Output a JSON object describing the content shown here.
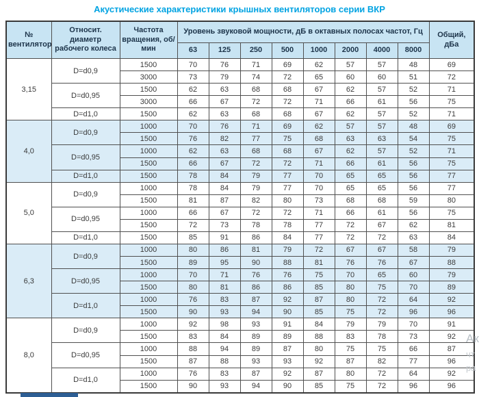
{
  "title": "Акустические характеристики крышных вентиляторов серии ВКР",
  "colors": {
    "title_accent": "#00a3e2",
    "header_bg": "#c8e4f3",
    "shaded_group_bg": "#daecf7",
    "border": "#4e4e4e"
  },
  "table": {
    "headers": {
      "fan_no": "№ вентилятора",
      "diameter": "Относит. диаметр рабочего колеса",
      "speed": "Частота вращения, об/мин",
      "spl_group": "Уровень звуковой мощности, дБ в октавных полосах частот, Гц",
      "freq_bands": [
        "63",
        "125",
        "250",
        "500",
        "1000",
        "2000",
        "4000",
        "8000"
      ],
      "total": "Общий, дБа"
    },
    "groups": [
      {
        "fan": "3,15",
        "subgroups": [
          {
            "diameter": "D=d0,9",
            "rows": [
              {
                "speed": "1500",
                "levels": [
                  70,
                  76,
                  71,
                  69,
                  62,
                  57,
                  57,
                  48
                ],
                "total": 69
              },
              {
                "speed": "3000",
                "levels": [
                  73,
                  79,
                  74,
                  72,
                  65,
                  60,
                  60,
                  51
                ],
                "total": 72
              }
            ]
          },
          {
            "diameter": "D=d0,95",
            "rows": [
              {
                "speed": "1500",
                "levels": [
                  62,
                  63,
                  68,
                  68,
                  67,
                  62,
                  57,
                  52
                ],
                "total": 71
              },
              {
                "speed": "3000",
                "levels": [
                  66,
                  67,
                  72,
                  72,
                  71,
                  66,
                  61,
                  56
                ],
                "total": 75
              }
            ]
          },
          {
            "diameter": "D=d1,0",
            "rows": [
              {
                "speed": "1500",
                "levels": [
                  62,
                  63,
                  68,
                  68,
                  67,
                  62,
                  57,
                  52
                ],
                "total": 71
              }
            ]
          }
        ]
      },
      {
        "fan": "4,0",
        "subgroups": [
          {
            "diameter": "D=d0,9",
            "rows": [
              {
                "speed": "1000",
                "levels": [
                  70,
                  76,
                  71,
                  69,
                  62,
                  57,
                  57,
                  48
                ],
                "total": 69
              },
              {
                "speed": "1500",
                "levels": [
                  76,
                  82,
                  77,
                  75,
                  68,
                  63,
                  63,
                  54
                ],
                "total": 75
              }
            ]
          },
          {
            "diameter": "D=d0,95",
            "rows": [
              {
                "speed": "1000",
                "levels": [
                  62,
                  63,
                  68,
                  68,
                  67,
                  62,
                  57,
                  52
                ],
                "total": 71
              },
              {
                "speed": "1500",
                "levels": [
                  66,
                  67,
                  72,
                  72,
                  71,
                  66,
                  61,
                  56
                ],
                "total": 75
              }
            ]
          },
          {
            "diameter": "D=d1,0",
            "rows": [
              {
                "speed": "1500",
                "levels": [
                  78,
                  84,
                  79,
                  77,
                  70,
                  65,
                  65,
                  56
                ],
                "total": 77
              }
            ]
          }
        ]
      },
      {
        "fan": "5,0",
        "subgroups": [
          {
            "diameter": "D=d0,9",
            "rows": [
              {
                "speed": "1000",
                "levels": [
                  78,
                  84,
                  79,
                  77,
                  70,
                  65,
                  65,
                  56
                ],
                "total": 77
              },
              {
                "speed": "1500",
                "levels": [
                  81,
                  87,
                  82,
                  80,
                  73,
                  68,
                  68,
                  59
                ],
                "total": 80
              }
            ]
          },
          {
            "diameter": "D=d0,95",
            "rows": [
              {
                "speed": "1000",
                "levels": [
                  66,
                  67,
                  72,
                  72,
                  71,
                  66,
                  61,
                  56
                ],
                "total": 75
              },
              {
                "speed": "1500",
                "levels": [
                  72,
                  73,
                  78,
                  78,
                  77,
                  72,
                  67,
                  62
                ],
                "total": 81
              }
            ]
          },
          {
            "diameter": "D=d1,0",
            "rows": [
              {
                "speed": "1500",
                "levels": [
                  85,
                  91,
                  86,
                  84,
                  77,
                  72,
                  72,
                  63
                ],
                "total": 84
              }
            ]
          }
        ]
      },
      {
        "fan": "6,3",
        "subgroups": [
          {
            "diameter": "D=d0,9",
            "rows": [
              {
                "speed": "1000",
                "levels": [
                  80,
                  86,
                  81,
                  79,
                  72,
                  67,
                  67,
                  58
                ],
                "total": 79
              },
              {
                "speed": "1500",
                "levels": [
                  89,
                  95,
                  90,
                  88,
                  81,
                  76,
                  76,
                  67
                ],
                "total": 88
              }
            ]
          },
          {
            "diameter": "D=d0,95",
            "rows": [
              {
                "speed": "1000",
                "levels": [
                  70,
                  71,
                  76,
                  76,
                  75,
                  70,
                  65,
                  60
                ],
                "total": 79
              },
              {
                "speed": "1500",
                "levels": [
                  80,
                  81,
                  86,
                  86,
                  85,
                  80,
                  75,
                  70
                ],
                "total": 89
              }
            ]
          },
          {
            "diameter": "D=d1,0",
            "rows": [
              {
                "speed": "1000",
                "levels": [
                  76,
                  83,
                  87,
                  92,
                  87,
                  80,
                  72,
                  64
                ],
                "total": 92
              },
              {
                "speed": "1500",
                "levels": [
                  90,
                  93,
                  94,
                  90,
                  85,
                  75,
                  72,
                  96
                ],
                "total": 96
              }
            ]
          }
        ]
      },
      {
        "fan": "8,0",
        "subgroups": [
          {
            "diameter": "D=d0,9",
            "rows": [
              {
                "speed": "1000",
                "levels": [
                  92,
                  98,
                  93,
                  91,
                  84,
                  79,
                  79,
                  70
                ],
                "total": 91
              },
              {
                "speed": "1500",
                "levels": [
                  83,
                  84,
                  89,
                  89,
                  88,
                  83,
                  78,
                  73
                ],
                "total": 92
              }
            ]
          },
          {
            "diameter": "D=d0,95",
            "rows": [
              {
                "speed": "1000",
                "levels": [
                  88,
                  94,
                  89,
                  87,
                  80,
                  75,
                  75,
                  66
                ],
                "total": 87
              },
              {
                "speed": "1500",
                "levels": [
                  87,
                  88,
                  93,
                  93,
                  92,
                  87,
                  82,
                  77
                ],
                "total": 96
              }
            ]
          },
          {
            "diameter": "D=d1,0",
            "rows": [
              {
                "speed": "1000",
                "levels": [
                  76,
                  83,
                  87,
                  92,
                  87,
                  80,
                  72,
                  64
                ],
                "total": 92
              },
              {
                "speed": "1500",
                "levels": [
                  90,
                  93,
                  94,
                  90,
                  85,
                  75,
                  72,
                  96
                ],
                "total": 96
              }
            ]
          }
        ]
      }
    ]
  },
  "watermark": {
    "line1": "Ак",
    "line2": "чт",
    "line3": "ра"
  }
}
